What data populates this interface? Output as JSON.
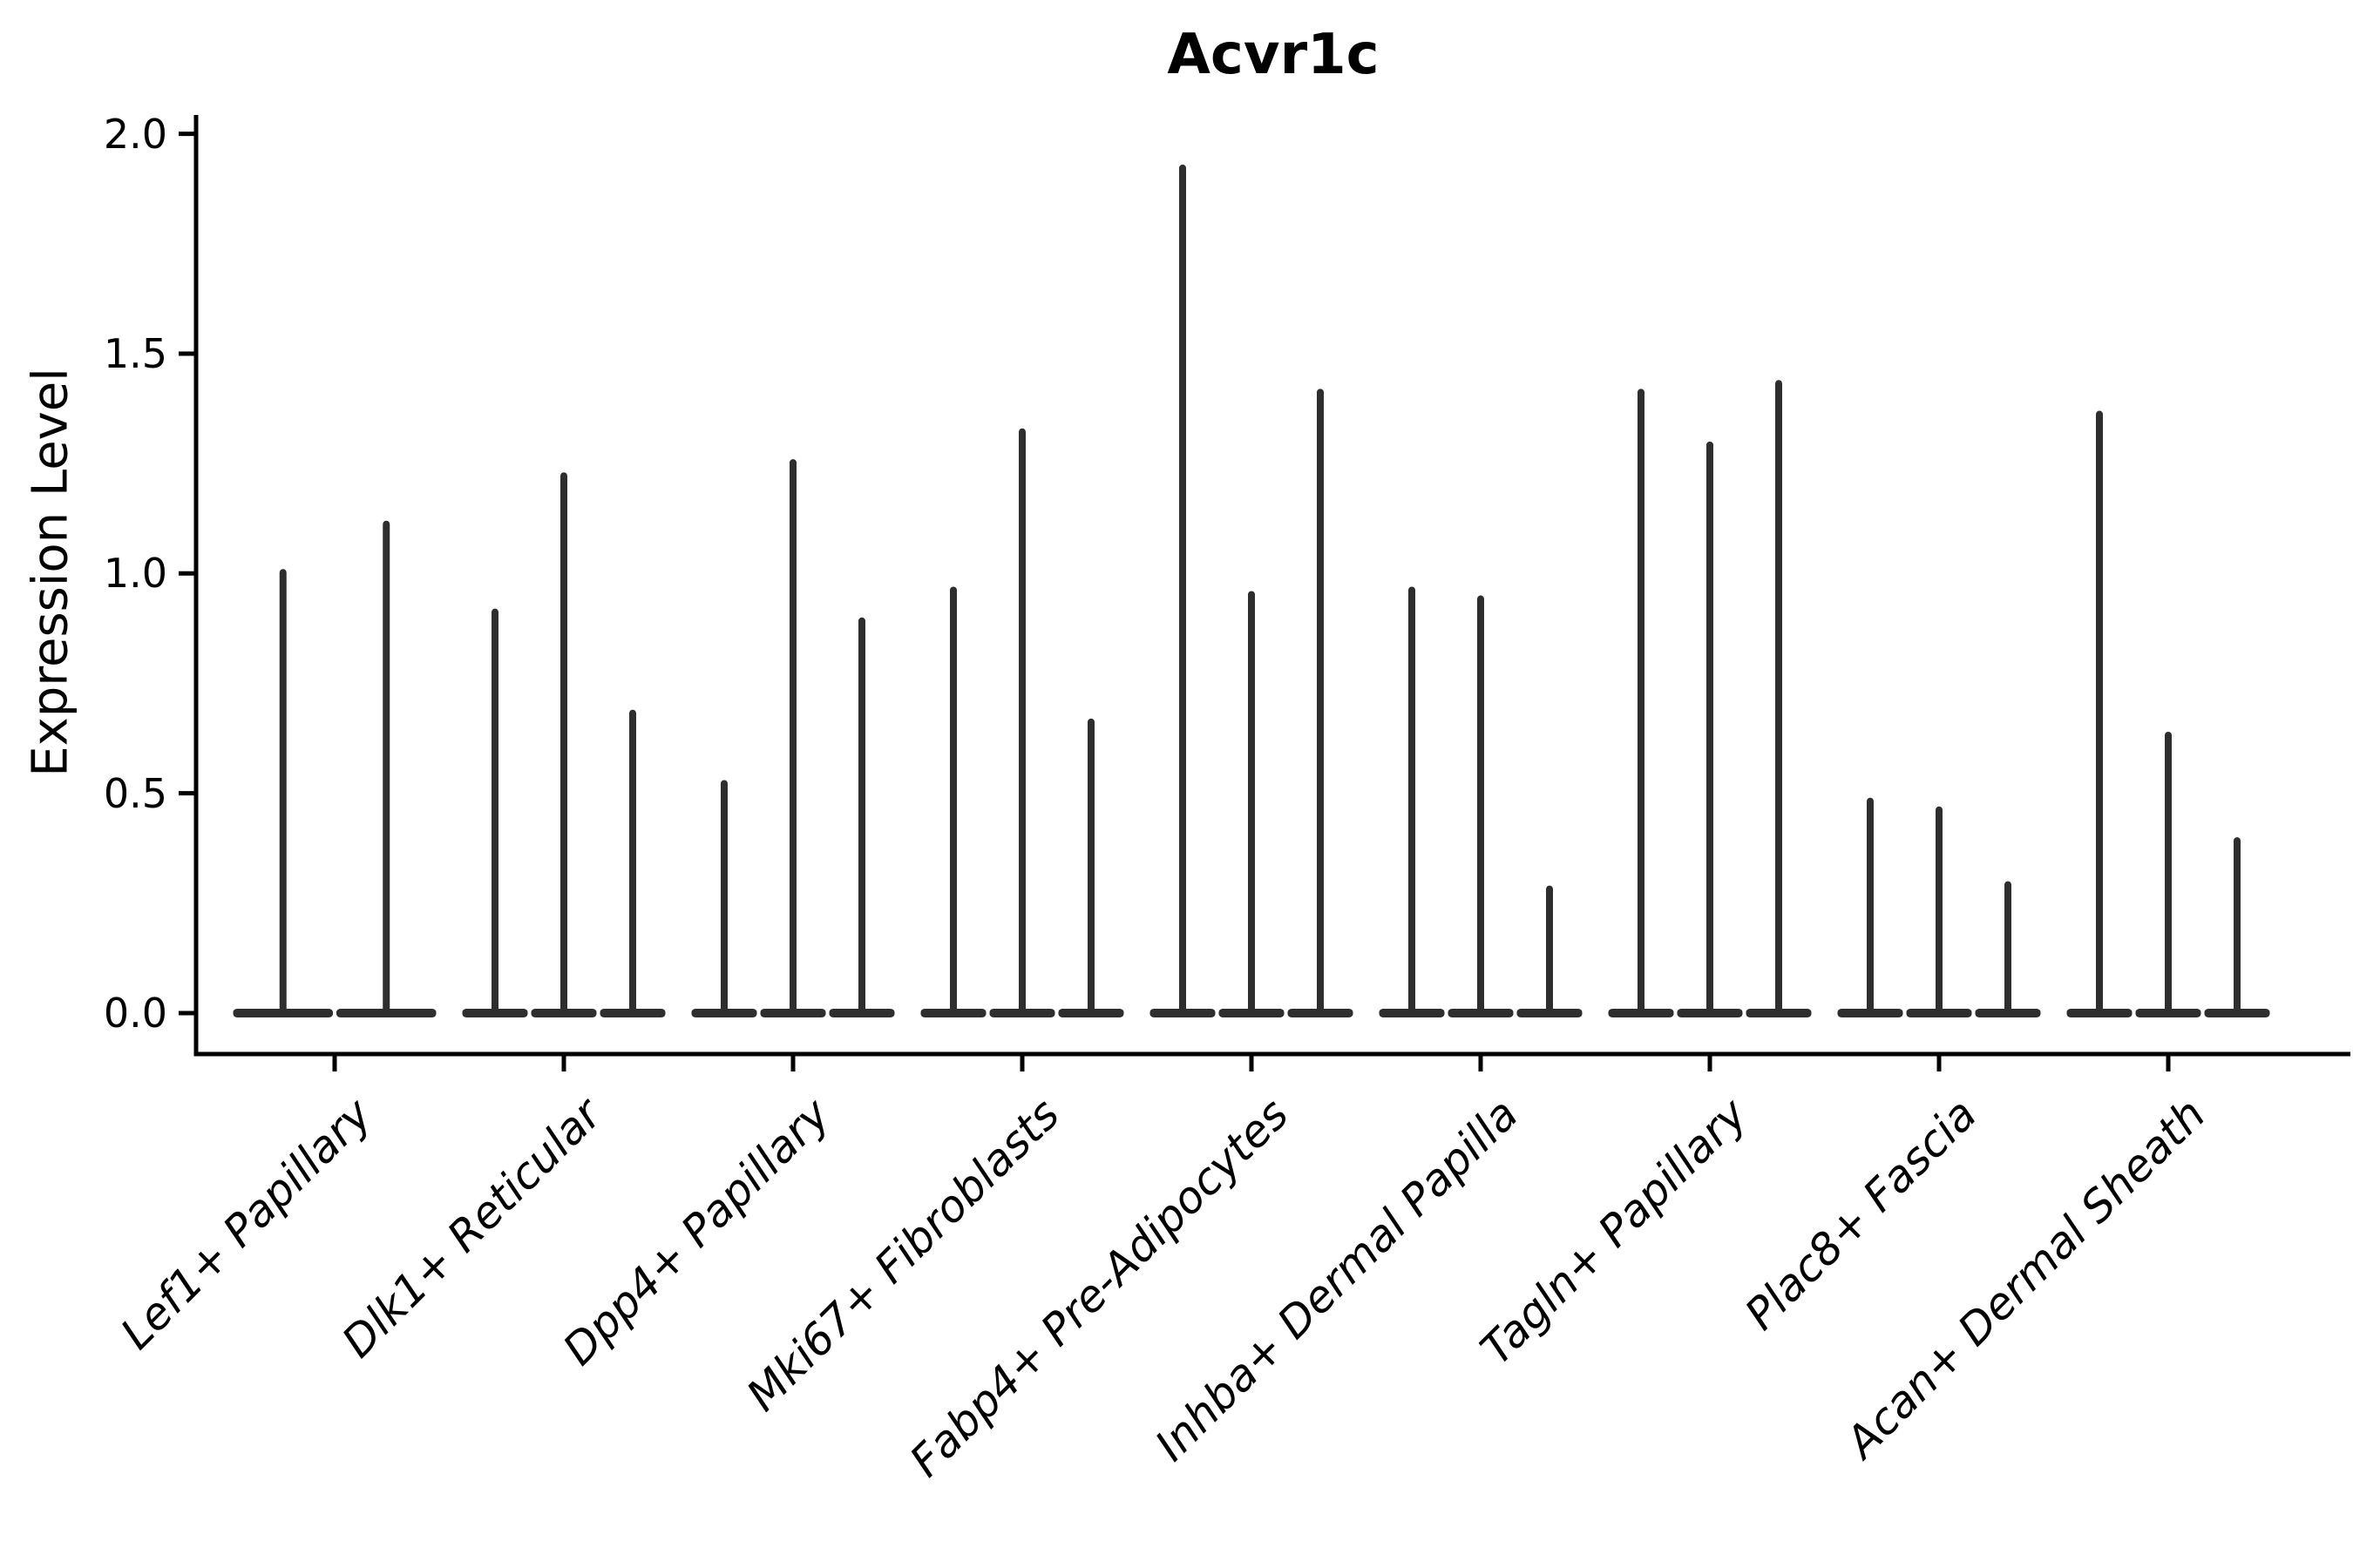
{
  "chart_data": {
    "type": "violin",
    "title": "Acvr1c",
    "ylabel": "Expression Level",
    "xlabel": "",
    "ylim": [
      0.0,
      2.0
    ],
    "yticks": [
      "0.0",
      "0.5",
      "1.0",
      "1.5",
      "2.0"
    ],
    "grid": false,
    "legend": null,
    "categories": [
      "Lef1+ Papillary",
      "Dlk1+ Reticular",
      "Dpp4+ Papillary",
      "Mki67+ Fibroblasts",
      "Fabp4+ Pre-Adipocytes",
      "Inhba+ Dermal Papilla",
      "Tagln+ Papillary",
      "Plac8+ Fascia",
      "Acan+ Dermal Sheath"
    ],
    "groups": [
      {
        "category": "Lef1+ Papillary",
        "violin_max_expression": [
          1.01,
          1.12
        ]
      },
      {
        "category": "Dlk1+ Reticular",
        "violin_max_expression": [
          0.92,
          1.23,
          0.69
        ]
      },
      {
        "category": "Dpp4+ Papillary",
        "violin_max_expression": [
          0.53,
          1.26,
          0.9
        ]
      },
      {
        "category": "Mki67+ Fibroblasts",
        "violin_max_expression": [
          0.97,
          1.33,
          0.67
        ]
      },
      {
        "category": "Fabp4+ Pre-Adipocytes",
        "violin_max_expression": [
          1.93,
          0.96,
          1.42
        ]
      },
      {
        "category": "Inhba+ Dermal Papilla",
        "violin_max_expression": [
          0.97,
          0.95,
          0.29
        ]
      },
      {
        "category": "Tagln+ Papillary",
        "violin_max_expression": [
          1.42,
          1.3,
          1.44
        ]
      },
      {
        "category": "Plac8+ Fascia",
        "violin_max_expression": [
          0.49,
          0.47,
          0.3
        ]
      },
      {
        "category": "Acan+ Dermal Sheath",
        "violin_max_expression": [
          1.37,
          0.64,
          0.4
        ]
      }
    ],
    "colors": {
      "violin": "#2e2e2e",
      "axis": "#000000",
      "text": "#000000",
      "background": "#ffffff"
    }
  }
}
